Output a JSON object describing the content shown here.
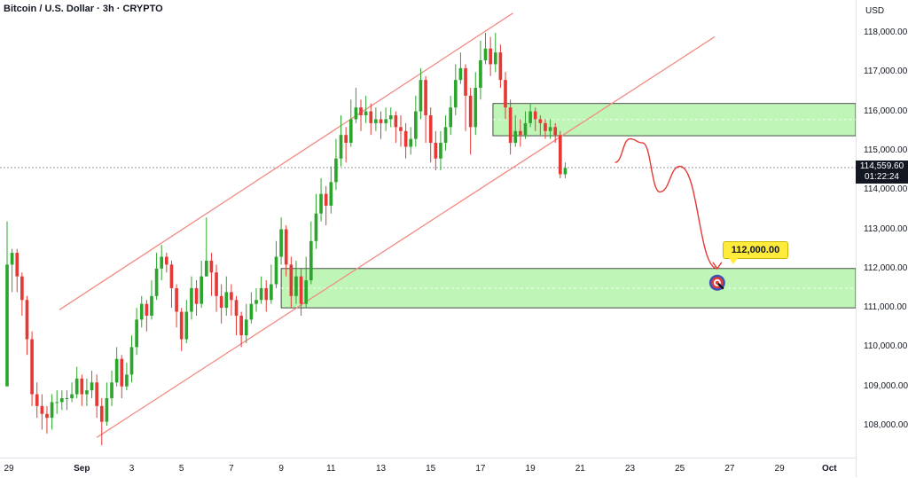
{
  "header": {
    "title": "Bitcoin / U.S. Dollar · 3h · CRYPTO",
    "currency": "USD"
  },
  "price_label": {
    "price": "114,559.60",
    "countdown": "01:22:24"
  },
  "target_label": "112,000.00",
  "colors": {
    "up": "#26a69a",
    "up_body": "#2ca52c",
    "down": "#e53935",
    "channel": "#f28b82",
    "zone_fill": "#b8f5b0",
    "zone_border": "#222222",
    "projection": "#e53935"
  },
  "chart_data": {
    "type": "candlestick",
    "title": "Bitcoin / U.S. Dollar · 3h · CRYPTO",
    "y_axis": {
      "ticks": [
        "118,000.00",
        "117,000.00",
        "116,000.00",
        "115,000.00",
        "114,000.00",
        "113,000.00",
        "112,000.00",
        "111,000.00",
        "110,000.00",
        "109,000.00",
        "108,000.00"
      ],
      "tick_values": [
        118000,
        117000,
        116000,
        115000,
        114000,
        113000,
        112000,
        111000,
        110000,
        109000,
        108000
      ],
      "range": [
        107600,
        118450
      ]
    },
    "x_axis": {
      "ticks": [
        "29",
        "Sep",
        "3",
        "5",
        "7",
        "9",
        "11",
        "13",
        "15",
        "17",
        "19",
        "21",
        "23",
        "25",
        "27",
        "29",
        "Oct"
      ],
      "tick_day_index": [
        0,
        3,
        5,
        7,
        9,
        11,
        13,
        15,
        17,
        19,
        21,
        23,
        25,
        27,
        29,
        31,
        33
      ]
    },
    "last_price": 114559.6,
    "channel": {
      "upper": {
        "from": {
          "day": 2.1,
          "price": 110950
        },
        "to": {
          "day": 20.3,
          "price": 118500
        }
      },
      "lower": {
        "from": {
          "day": 3.6,
          "price": 107700
        },
        "to": {
          "day": 28.4,
          "price": 117900
        }
      }
    },
    "zones": [
      {
        "from_day": 19.5,
        "to_day": 34.5,
        "low": 115380,
        "high": 116200
      },
      {
        "from_day": 11.0,
        "to_day": 34.5,
        "low": 111000,
        "high": 112000
      }
    ],
    "projection": [
      {
        "day": 24.4,
        "price": 114700
      },
      {
        "day": 25.0,
        "price": 115300
      },
      {
        "day": 25.5,
        "price": 115200
      },
      {
        "day": 26.2,
        "price": 113950
      },
      {
        "day": 27.0,
        "price": 114600
      },
      {
        "day": 28.5,
        "price": 112000
      }
    ],
    "target": 112000,
    "candles": [
      [
        109000,
        112100,
        113200,
        112000
      ],
      [
        112100,
        112400,
        112500,
        111400
      ],
      [
        112400,
        111800,
        112500,
        111400
      ],
      [
        111800,
        111200,
        111900,
        110800
      ],
      [
        111200,
        110200,
        111300,
        109800
      ],
      [
        110200,
        108800,
        110400,
        108500
      ],
      [
        108800,
        108500,
        109100,
        108200
      ],
      [
        108500,
        108300,
        108800,
        107900
      ],
      [
        108300,
        108200,
        108500,
        107800
      ],
      [
        108200,
        108600,
        108800,
        107900
      ],
      [
        108600,
        108600,
        108900,
        108300
      ],
      [
        108600,
        108700,
        108900,
        108400
      ],
      [
        108700,
        108700,
        108900,
        108400
      ],
      [
        108700,
        108800,
        109100,
        108600
      ],
      [
        108800,
        109200,
        109500,
        108700
      ],
      [
        109200,
        108800,
        109300,
        108500
      ],
      [
        108800,
        108900,
        109200,
        108500
      ],
      [
        108900,
        109100,
        109400,
        108700
      ],
      [
        109100,
        108500,
        109300,
        108200
      ],
      [
        108500,
        108100,
        108700,
        107500
      ],
      [
        108100,
        108700,
        109100,
        108000
      ],
      [
        108700,
        109100,
        109400,
        108500
      ],
      [
        109100,
        109700,
        110000,
        109000
      ],
      [
        109700,
        109000,
        109800,
        108700
      ],
      [
        109000,
        109300,
        109600,
        108900
      ],
      [
        109300,
        110000,
        110300,
        109100
      ],
      [
        110000,
        110700,
        111000,
        109800
      ],
      [
        110700,
        111100,
        111300,
        110500
      ],
      [
        111100,
        110800,
        111200,
        110400
      ],
      [
        110800,
        111300,
        111700,
        110700
      ],
      [
        111300,
        112000,
        112400,
        111200
      ],
      [
        112000,
        112300,
        112600,
        111700
      ],
      [
        112300,
        112100,
        112400,
        111900
      ],
      [
        112100,
        111500,
        112200,
        111000
      ],
      [
        111500,
        110900,
        111600,
        110500
      ],
      [
        110900,
        110200,
        111000,
        109900
      ],
      [
        110200,
        110900,
        111200,
        110100
      ],
      [
        110900,
        111500,
        111800,
        110700
      ],
      [
        111500,
        111100,
        111700,
        110800
      ],
      [
        111100,
        111800,
        112200,
        111000
      ],
      [
        111800,
        112200,
        113300,
        111800
      ],
      [
        112200,
        111900,
        112400,
        111300
      ],
      [
        111900,
        111300,
        112100,
        110900
      ],
      [
        111300,
        111000,
        111600,
        110600
      ],
      [
        111000,
        111400,
        111800,
        110800
      ],
      [
        111400,
        111200,
        111600,
        110800
      ],
      [
        111200,
        110800,
        111300,
        110300
      ],
      [
        110800,
        110300,
        110900,
        110000
      ],
      [
        110300,
        110700,
        111100,
        110100
      ],
      [
        110700,
        111100,
        111400,
        110600
      ],
      [
        111100,
        111200,
        111500,
        110900
      ],
      [
        111200,
        111500,
        111800,
        111100
      ],
      [
        111500,
        111200,
        111700,
        110900
      ],
      [
        111200,
        111600,
        112100,
        111100
      ],
      [
        111600,
        112300,
        112700,
        111500
      ],
      [
        112300,
        113000,
        113300,
        112100
      ],
      [
        113000,
        112100,
        113100,
        111800
      ],
      [
        112100,
        111300,
        112300,
        111000
      ],
      [
        111300,
        111800,
        112200,
        111100
      ],
      [
        111800,
        111100,
        112000,
        110800
      ],
      [
        111100,
        111700,
        112300,
        111000
      ],
      [
        111700,
        112700,
        113200,
        111600
      ],
      [
        112700,
        113400,
        113900,
        112500
      ],
      [
        113400,
        113900,
        114300,
        113200
      ],
      [
        113900,
        113600,
        114100,
        113100
      ],
      [
        113600,
        114200,
        114600,
        113400
      ],
      [
        114200,
        114800,
        115300,
        114000
      ],
      [
        114800,
        115400,
        115900,
        114600
      ],
      [
        115400,
        115200,
        115600,
        114700
      ],
      [
        115200,
        115800,
        116300,
        115100
      ],
      [
        115800,
        116100,
        116600,
        115700
      ],
      [
        116100,
        115900,
        116300,
        115500
      ],
      [
        115900,
        116000,
        116400,
        115700
      ],
      [
        116000,
        115700,
        116200,
        115400
      ],
      [
        115700,
        115800,
        116100,
        115500
      ],
      [
        115800,
        115700,
        116000,
        115300
      ],
      [
        115700,
        115800,
        116100,
        115500
      ],
      [
        115800,
        115900,
        116100,
        115600
      ],
      [
        115900,
        115600,
        116000,
        115200
      ],
      [
        115600,
        115500,
        115900,
        115100
      ],
      [
        115500,
        115100,
        115700,
        114800
      ],
      [
        115100,
        115300,
        115600,
        114900
      ],
      [
        115300,
        116000,
        116400,
        115100
      ],
      [
        116000,
        116800,
        117100,
        115800
      ],
      [
        116800,
        115900,
        116900,
        115200
      ],
      [
        115900,
        115200,
        116100,
        114700
      ],
      [
        115200,
        114800,
        115500,
        114500
      ],
      [
        114800,
        115200,
        115500,
        114500
      ],
      [
        115200,
        115600,
        115900,
        115000
      ],
      [
        115600,
        116100,
        116400,
        115400
      ],
      [
        116100,
        116800,
        117200,
        115900
      ],
      [
        116800,
        117100,
        117500,
        116700
      ],
      [
        117100,
        116400,
        117200,
        115500
      ],
      [
        116400,
        115600,
        116600,
        114900
      ],
      [
        115600,
        116600,
        117000,
        115400
      ],
      [
        116600,
        117300,
        117800,
        116300
      ],
      [
        117300,
        117600,
        118000,
        117200
      ],
      [
        117600,
        117200,
        117900,
        116900
      ],
      [
        117200,
        117500,
        118000,
        117000
      ],
      [
        117500,
        116800,
        117700,
        116600
      ],
      [
        116800,
        116100,
        117000,
        115800
      ],
      [
        116100,
        115200,
        116300,
        114900
      ],
      [
        115200,
        115500,
        115900,
        115100
      ],
      [
        115500,
        115400,
        115800,
        115100
      ],
      [
        115400,
        115700,
        116000,
        115300
      ],
      [
        115700,
        116000,
        116200,
        115600
      ],
      [
        116000,
        115800,
        116100,
        115500
      ],
      [
        115800,
        115700,
        115900,
        115400
      ],
      [
        115700,
        115500,
        115800,
        115300
      ],
      [
        115500,
        115600,
        115800,
        115300
      ],
      [
        115600,
        115400,
        115700,
        115200
      ],
      [
        115400,
        114400,
        115500,
        114300
      ],
      [
        114400,
        114560,
        114700,
        114300
      ]
    ]
  }
}
